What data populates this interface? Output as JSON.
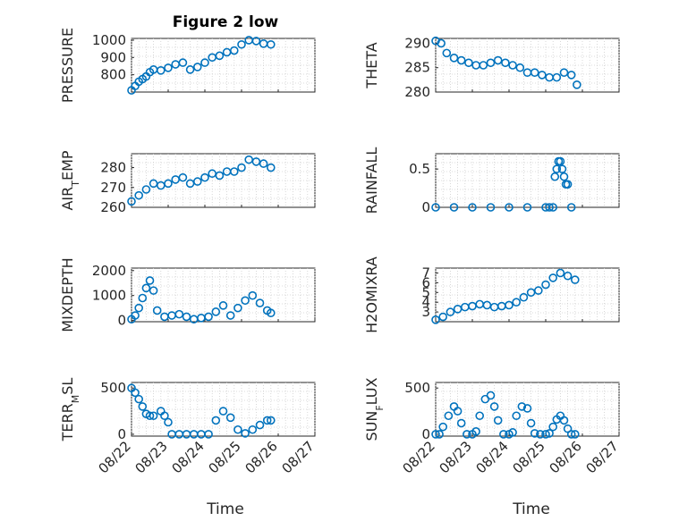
{
  "figure": {
    "title": "Figure 2 low",
    "xlabel": "Time",
    "x_tick_labels": [
      "08/22",
      "08/23",
      "08/24",
      "08/25",
      "08/26",
      "08/27"
    ],
    "marker_color": "#0072bd",
    "marker": "open-circle",
    "grid": "minor dotted"
  },
  "chart_data": [
    {
      "type": "scatter",
      "ylabel_main": "PRESSURE",
      "ylabel_sub": "",
      "ylabel_tail": "",
      "ylim": [
        700,
        1010
      ],
      "yticks": [
        800,
        900,
        1000
      ],
      "x": [
        0,
        0.1,
        0.2,
        0.3,
        0.4,
        0.5,
        0.6,
        0.8,
        1.0,
        1.2,
        1.4,
        1.6,
        1.8,
        2.0,
        2.2,
        2.4,
        2.6,
        2.8,
        3.0,
        3.2,
        3.4,
        3.6,
        3.8
      ],
      "y": [
        710,
        735,
        760,
        775,
        790,
        815,
        830,
        825,
        840,
        860,
        870,
        830,
        845,
        870,
        900,
        910,
        930,
        940,
        975,
        1000,
        995,
        980,
        975
      ]
    },
    {
      "type": "scatter",
      "ylabel_main": "THETA",
      "ylabel_sub": "",
      "ylabel_tail": "",
      "ylim": [
        280,
        291
      ],
      "yticks": [
        280,
        285,
        290
      ],
      "x": [
        0,
        0.15,
        0.3,
        0.5,
        0.7,
        0.9,
        1.1,
        1.3,
        1.5,
        1.7,
        1.9,
        2.1,
        2.3,
        2.5,
        2.7,
        2.9,
        3.1,
        3.3,
        3.5,
        3.7,
        3.85
      ],
      "y": [
        290.5,
        290,
        288,
        287,
        286.5,
        286,
        285.5,
        285.5,
        286,
        286.5,
        286,
        285.5,
        285,
        284,
        284,
        283.5,
        283,
        283,
        284,
        283.5,
        281.5
      ]
    },
    {
      "type": "scatter",
      "ylabel_main": "AIR",
      "ylabel_sub": "T",
      "ylabel_tail": "EMP",
      "ylim": [
        260,
        287
      ],
      "yticks": [
        260,
        270,
        280
      ],
      "x": [
        0,
        0.2,
        0.4,
        0.6,
        0.8,
        1.0,
        1.2,
        1.4,
        1.6,
        1.8,
        2.0,
        2.2,
        2.4,
        2.6,
        2.8,
        3.0,
        3.2,
        3.4,
        3.6,
        3.8
      ],
      "y": [
        263,
        266,
        269,
        272,
        271,
        272,
        274,
        275,
        272,
        273,
        275,
        277,
        276,
        278,
        278,
        280,
        284,
        283,
        282,
        280
      ]
    },
    {
      "type": "scatter",
      "ylabel_main": "RAINFALL",
      "ylabel_sub": "",
      "ylabel_tail": "",
      "ylim": [
        0,
        0.7
      ],
      "yticks": [
        0,
        0.5
      ],
      "x": [
        0,
        0.5,
        1.0,
        1.5,
        2.0,
        2.5,
        3.0,
        3.1,
        3.2,
        3.25,
        3.3,
        3.35,
        3.4,
        3.45,
        3.5,
        3.55,
        3.6,
        3.7
      ],
      "y": [
        0,
        0,
        0,
        0,
        0,
        0,
        0,
        0,
        0,
        0.4,
        0.5,
        0.6,
        0.6,
        0.5,
        0.4,
        0.3,
        0.3,
        0
      ]
    },
    {
      "type": "scatter",
      "ylabel_main": "MIXDEPTH",
      "ylabel_sub": "",
      "ylabel_tail": "",
      "ylim": [
        -50,
        2100
      ],
      "yticks": [
        0,
        1000,
        2000
      ],
      "x": [
        0,
        0.1,
        0.2,
        0.3,
        0.4,
        0.5,
        0.6,
        0.7,
        0.9,
        1.1,
        1.3,
        1.5,
        1.7,
        1.9,
        2.1,
        2.3,
        2.5,
        2.7,
        2.9,
        3.1,
        3.3,
        3.5,
        3.7,
        3.8
      ],
      "y": [
        50,
        200,
        500,
        900,
        1300,
        1600,
        1200,
        400,
        150,
        200,
        250,
        150,
        50,
        100,
        150,
        350,
        600,
        200,
        500,
        800,
        1000,
        700,
        400,
        300
      ]
    },
    {
      "type": "scatter",
      "ylabel_main": "H2OMIXRA",
      "ylabel_sub": "",
      "ylabel_tail": "",
      "ylim": [
        2,
        7.5
      ],
      "yticks": [
        3,
        4,
        5,
        6,
        7
      ],
      "x": [
        0,
        0.2,
        0.4,
        0.6,
        0.8,
        1.0,
        1.2,
        1.4,
        1.6,
        1.8,
        2.0,
        2.2,
        2.4,
        2.6,
        2.8,
        3.0,
        3.2,
        3.4,
        3.6,
        3.8
      ],
      "y": [
        2.2,
        2.5,
        3,
        3.3,
        3.5,
        3.6,
        3.8,
        3.7,
        3.5,
        3.6,
        3.7,
        4,
        4.5,
        5,
        5.2,
        5.8,
        6.5,
        7,
        6.7,
        6.3
      ]
    },
    {
      "type": "scatter",
      "ylabel_main": "TERR",
      "ylabel_sub": "M",
      "ylabel_tail": "SL",
      "ylim": [
        -20,
        560
      ],
      "yticks": [
        0,
        500
      ],
      "x": [
        0,
        0.1,
        0.2,
        0.3,
        0.4,
        0.5,
        0.6,
        0.8,
        0.9,
        1.0,
        1.1,
        1.3,
        1.5,
        1.7,
        1.9,
        2.1,
        2.3,
        2.5,
        2.7,
        2.9,
        3.1,
        3.3,
        3.5,
        3.7,
        3.8
      ],
      "y": [
        500,
        450,
        380,
        300,
        220,
        200,
        200,
        250,
        200,
        130,
        0,
        0,
        0,
        0,
        0,
        0,
        150,
        250,
        180,
        50,
        10,
        50,
        100,
        150,
        150
      ]
    },
    {
      "type": "scatter",
      "ylabel_main": "SUN",
      "ylabel_sub": "F",
      "ylabel_tail": "LUX",
      "ylim": [
        -20,
        560
      ],
      "yticks": [
        0,
        500
      ],
      "x": [
        0,
        0.1,
        0.2,
        0.35,
        0.5,
        0.6,
        0.7,
        0.85,
        1.0,
        1.1,
        1.2,
        1.35,
        1.5,
        1.6,
        1.7,
        1.85,
        2.0,
        2.1,
        2.2,
        2.35,
        2.5,
        2.6,
        2.7,
        2.85,
        3.0,
        3.1,
        3.2,
        3.3,
        3.4,
        3.5,
        3.6,
        3.7,
        3.8
      ],
      "y": [
        0,
        0,
        80,
        200,
        300,
        250,
        120,
        0,
        0,
        30,
        200,
        380,
        420,
        300,
        150,
        0,
        0,
        20,
        200,
        300,
        280,
        120,
        10,
        0,
        0,
        10,
        80,
        160,
        200,
        150,
        60,
        0,
        0
      ]
    }
  ]
}
